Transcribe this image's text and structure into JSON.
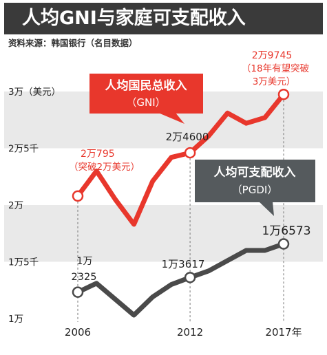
{
  "title": "人均GNI与家庭可支配收入",
  "source": "资料来源：韩国银行（名目数据）",
  "colors": {
    "gni": "#e8372c",
    "pgdi": "#4a4a4a",
    "bubble_pgdi": "#555a5d",
    "band": "#e9e9e9",
    "title_bg": "#3a3a3a",
    "annotation_red": "#e8372c"
  },
  "chart_data": {
    "type": "line",
    "title": "人均GNI与家庭可支配收入",
    "xlabel": "",
    "ylabel": "",
    "ylim": [
      10000,
      31500
    ],
    "x_ticks": [
      "2006",
      "2012",
      "2017年"
    ],
    "y_ticks": [
      "1万",
      "1万5千",
      "2万",
      "2万5千",
      "3万（美元）"
    ],
    "grid": false,
    "series": [
      {
        "name": "人均国民总收入（GNI）",
        "x": [
          2006,
          2007,
          2008,
          2009,
          2010,
          2011,
          2012,
          2013,
          2014,
          2015,
          2016,
          2017
        ],
        "y": [
          20795,
          23000,
          20500,
          18300,
          22100,
          24200,
          24600,
          26100,
          28100,
          27200,
          27700,
          29745
        ]
      },
      {
        "name": "人均可支配收入（PGDI）",
        "x": [
          2006,
          2007,
          2008,
          2009,
          2010,
          2011,
          2012,
          2013,
          2014,
          2015,
          2016,
          2017
        ],
        "y": [
          12325,
          13100,
          11700,
          10300,
          11900,
          13000,
          13617,
          14200,
          15100,
          16000,
          16000,
          16573
        ]
      }
    ],
    "annotations": {
      "gni_start_lines": [
        "2万795",
        "（突破2万美元）"
      ],
      "gni_mid": "2万4600",
      "gni_end_lines": [
        "2万9745",
        "（18年有望突破",
        "3万美元）"
      ],
      "pgdi_start_lines": [
        "1万",
        "2325"
      ],
      "pgdi_mid": "1万3617",
      "pgdi_end": "1万6573"
    },
    "bubbles": {
      "gni": [
        "人均国民总收入",
        "（GNI）"
      ],
      "pgdi": [
        "人均可支配收入",
        "（PGDI）"
      ]
    }
  }
}
